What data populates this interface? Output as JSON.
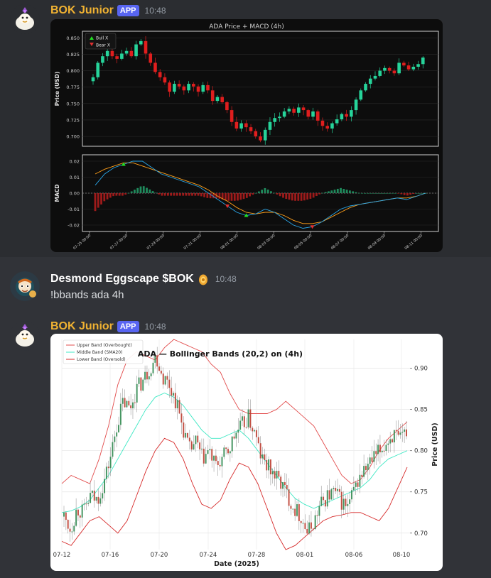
{
  "messages": [
    {
      "author": "BOK Junior",
      "author_color": "#f0b232",
      "badge": "APP",
      "time": "10:48",
      "chart_title": "ADA Price + MACD (4h)"
    },
    {
      "author": "Desmond Eggscape $BOK",
      "author_color": "#ffffff",
      "time": "10:48",
      "text": "!bbands ada 4h"
    },
    {
      "author": "BOK Junior",
      "author_color": "#f0b232",
      "badge": "APP",
      "time": "10:48",
      "chart_title": "ADA — Bollinger Bands (20,2) on (4h)"
    }
  ],
  "chart_data": [
    {
      "type": "line",
      "title": "ADA Price + MACD (4h)",
      "panels": [
        {
          "name": "price",
          "ylabel": "Price (USD)",
          "ylim": [
            0.685,
            0.86
          ],
          "yticks": [
            "0.700",
            "0.725",
            "0.750",
            "0.775",
            "0.800",
            "0.825",
            "0.850"
          ],
          "legend": [
            "Bull X",
            "Bear X"
          ],
          "legend_position": "top-left",
          "close_series": [
            0.79,
            0.812,
            0.822,
            0.83,
            0.822,
            0.818,
            0.826,
            0.83,
            0.822,
            0.84,
            0.845,
            0.826,
            0.812,
            0.798,
            0.79,
            0.782,
            0.768,
            0.78,
            0.776,
            0.77,
            0.78,
            0.776,
            0.768,
            0.778,
            0.77,
            0.754,
            0.76,
            0.752,
            0.74,
            0.722,
            0.712,
            0.72,
            0.714,
            0.708,
            0.7,
            0.694,
            0.71,
            0.722,
            0.728,
            0.73,
            0.738,
            0.742,
            0.736,
            0.744,
            0.74,
            0.73,
            0.738,
            0.724,
            0.716,
            0.712,
            0.72,
            0.726,
            0.734,
            0.73,
            0.74,
            0.756,
            0.77,
            0.78,
            0.788,
            0.792,
            0.8,
            0.804,
            0.8,
            0.796,
            0.812,
            0.808,
            0.802,
            0.806,
            0.81,
            0.82
          ]
        },
        {
          "name": "macd",
          "ylabel": "MACD",
          "ylim": [
            -0.024,
            0.024
          ],
          "yticks": [
            "0.02",
            "0.01",
            "0.00",
            "-0.01",
            "-0.02"
          ],
          "macd_series": [
            0.005,
            0.012,
            0.016,
            0.018,
            0.02,
            0.02,
            0.016,
            0.012,
            0.01,
            0.008,
            0.006,
            0.004,
            0.0,
            -0.004,
            -0.008,
            -0.012,
            -0.014,
            -0.013,
            -0.01,
            -0.012,
            -0.016,
            -0.02,
            -0.022,
            -0.021,
            -0.018,
            -0.014,
            -0.01,
            -0.008,
            -0.007,
            -0.006,
            -0.005,
            -0.004,
            -0.003,
            -0.004,
            -0.002,
            0.0
          ],
          "signal_series": [
            0.012,
            0.015,
            0.017,
            0.019,
            0.019,
            0.017,
            0.015,
            0.013,
            0.011,
            0.009,
            0.007,
            0.005,
            0.002,
            -0.002,
            -0.005,
            -0.009,
            -0.012,
            -0.013,
            -0.012,
            -0.012,
            -0.014,
            -0.017,
            -0.019,
            -0.019,
            -0.018,
            -0.015,
            -0.012,
            -0.009,
            -0.007,
            -0.006,
            -0.005,
            -0.004,
            -0.003,
            -0.003,
            -0.002,
            0.0
          ],
          "markers": [
            {
              "type": "bull",
              "index": 3
            },
            {
              "type": "bear",
              "index": 14
            },
            {
              "type": "bull",
              "index": 16
            },
            {
              "type": "bear",
              "index": 23
            }
          ]
        }
      ],
      "x_ticks": [
        "07-25 00:00",
        "07-27 00:00",
        "07-29 00:00",
        "07-31 00:00",
        "08-01 00:00",
        "08-03 00:00",
        "08-05 00:00",
        "08-07 00:00",
        "08-09 00:00",
        "08-11 00:00"
      ],
      "bull_color": "#26d49a",
      "bear_color": "#e01e1e",
      "macd_color": "#2aa6e8",
      "signal_color": "#ff9f1a"
    },
    {
      "type": "line",
      "title": "ADA — Bollinger Bands (20,2) on (4h)",
      "xlabel": "Date (2025)",
      "ylabel": "Price (USD)",
      "ylim": [
        0.68,
        0.935
      ],
      "yticks": [
        "0.90",
        "0.85",
        "0.80",
        "0.75",
        "0.70"
      ],
      "x_ticks": [
        "07-12",
        "07-16",
        "07-20",
        "07-24",
        "07-28",
        "08-01",
        "08-06",
        "08-10"
      ],
      "legend": [
        "Upper Band (Overbought)",
        "Middle Band (SMA20)",
        "Lower Band (Oversold)"
      ],
      "legend_position": "top-left",
      "close_series": [
        0.72,
        0.705,
        0.73,
        0.725,
        0.745,
        0.74,
        0.76,
        0.79,
        0.83,
        0.86,
        0.85,
        0.875,
        0.885,
        0.9,
        0.915,
        0.89,
        0.88,
        0.86,
        0.83,
        0.8,
        0.81,
        0.79,
        0.8,
        0.78,
        0.79,
        0.8,
        0.82,
        0.83,
        0.84,
        0.82,
        0.79,
        0.78,
        0.77,
        0.76,
        0.745,
        0.73,
        0.72,
        0.7,
        0.715,
        0.735,
        0.745,
        0.75,
        0.74,
        0.73,
        0.75,
        0.77,
        0.78,
        0.79,
        0.8,
        0.81,
        0.82,
        0.81,
        0.825
      ],
      "upper_series": [
        0.76,
        0.77,
        0.765,
        0.76,
        0.79,
        0.83,
        0.88,
        0.91,
        0.92,
        0.915,
        0.91,
        0.925,
        0.935,
        0.93,
        0.925,
        0.92,
        0.905,
        0.895,
        0.87,
        0.85,
        0.845,
        0.845,
        0.845,
        0.85,
        0.86,
        0.85,
        0.84,
        0.83,
        0.81,
        0.79,
        0.77,
        0.76,
        0.765,
        0.78,
        0.8,
        0.815,
        0.825,
        0.835
      ],
      "middle_series": [
        0.725,
        0.727,
        0.732,
        0.74,
        0.755,
        0.77,
        0.79,
        0.81,
        0.83,
        0.85,
        0.865,
        0.87,
        0.865,
        0.855,
        0.84,
        0.825,
        0.815,
        0.815,
        0.82,
        0.825,
        0.815,
        0.8,
        0.785,
        0.77,
        0.755,
        0.742,
        0.735,
        0.73,
        0.735,
        0.74,
        0.745,
        0.75,
        0.755,
        0.765,
        0.78,
        0.79,
        0.795,
        0.8
      ],
      "lower_series": [
        0.69,
        0.685,
        0.7,
        0.715,
        0.72,
        0.71,
        0.7,
        0.715,
        0.745,
        0.775,
        0.8,
        0.815,
        0.81,
        0.79,
        0.76,
        0.735,
        0.73,
        0.74,
        0.765,
        0.785,
        0.78,
        0.76,
        0.73,
        0.7,
        0.68,
        0.685,
        0.695,
        0.705,
        0.715,
        0.72,
        0.722,
        0.725,
        0.725,
        0.72,
        0.715,
        0.73,
        0.755,
        0.78
      ],
      "upper_color": "#e24b4b",
      "middle_color": "#3ee8c4",
      "lower_color": "#d62a2a",
      "bull_color": "#2d8a4e",
      "bear_color": "#c0392b"
    }
  ]
}
